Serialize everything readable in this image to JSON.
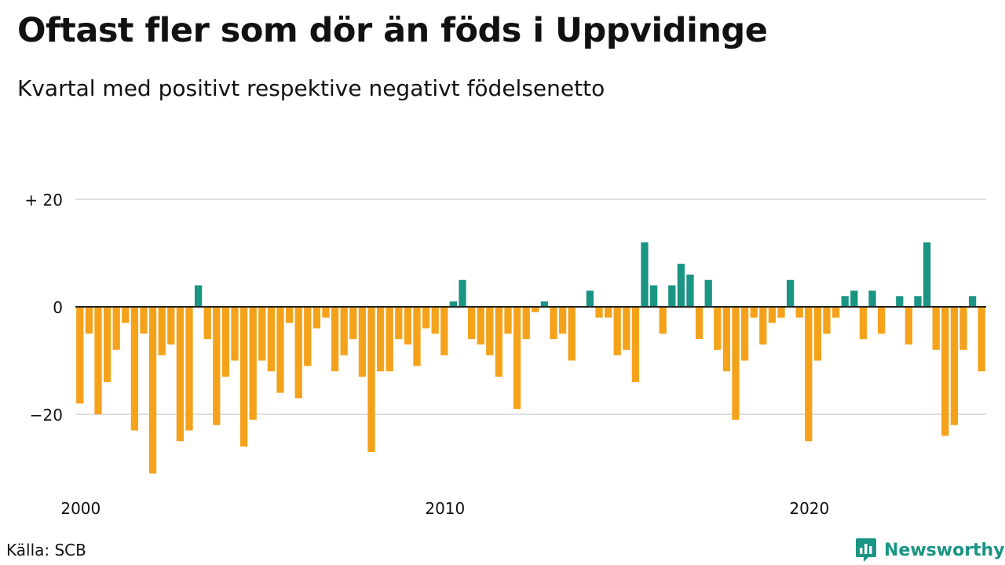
{
  "title": "Oftast fler som dör än föds i Uppvidinge",
  "subtitle": "Kvartal med positivt respektive negativt födelsenetto",
  "source": "Källa: SCB",
  "brand": {
    "name": "Newsworthy",
    "icon": "newsworthy-logo-icon"
  },
  "colors": {
    "positive": "#1a9483",
    "negative": "#f5a21b",
    "grid": "#dddddd",
    "zero": "#222222"
  },
  "chart_data": {
    "type": "bar",
    "ylim": [
      -32,
      22
    ],
    "yticks": [
      20,
      0,
      -20
    ],
    "ytick_labels": [
      "+ 20",
      "0",
      "−20"
    ],
    "xticks": [
      "2000",
      "2010",
      "2020"
    ],
    "grid": true,
    "series": [
      {
        "values": [
          -18,
          -5,
          -20,
          -14,
          -8,
          -3,
          -23,
          -5,
          -31,
          -9,
          -7,
          -25,
          -23,
          4,
          -6,
          -22,
          -13,
          -10,
          -26,
          -21,
          -10,
          -12,
          -16,
          -3,
          -17,
          -11,
          -4,
          -2,
          -12,
          -9,
          -6,
          -13,
          -27,
          -12,
          -12,
          -6,
          -7,
          -11,
          -4,
          -5,
          -9,
          1,
          5,
          -6,
          -7,
          -9,
          -13,
          -5,
          -19,
          -6,
          -1,
          1,
          -6,
          -5,
          -10,
          0,
          3,
          -2,
          -2,
          -9,
          -8,
          -14,
          12,
          4,
          -5,
          4,
          8,
          6,
          -6,
          5,
          -8,
          -12,
          -21,
          -10,
          -2,
          -7,
          -3,
          -2,
          5,
          -2,
          -25,
          -10,
          -5,
          -2,
          2,
          3,
          -6,
          3,
          -5,
          0,
          2,
          -7,
          2,
          12,
          -8,
          -24,
          -22,
          -8,
          2,
          -12
        ]
      }
    ]
  }
}
